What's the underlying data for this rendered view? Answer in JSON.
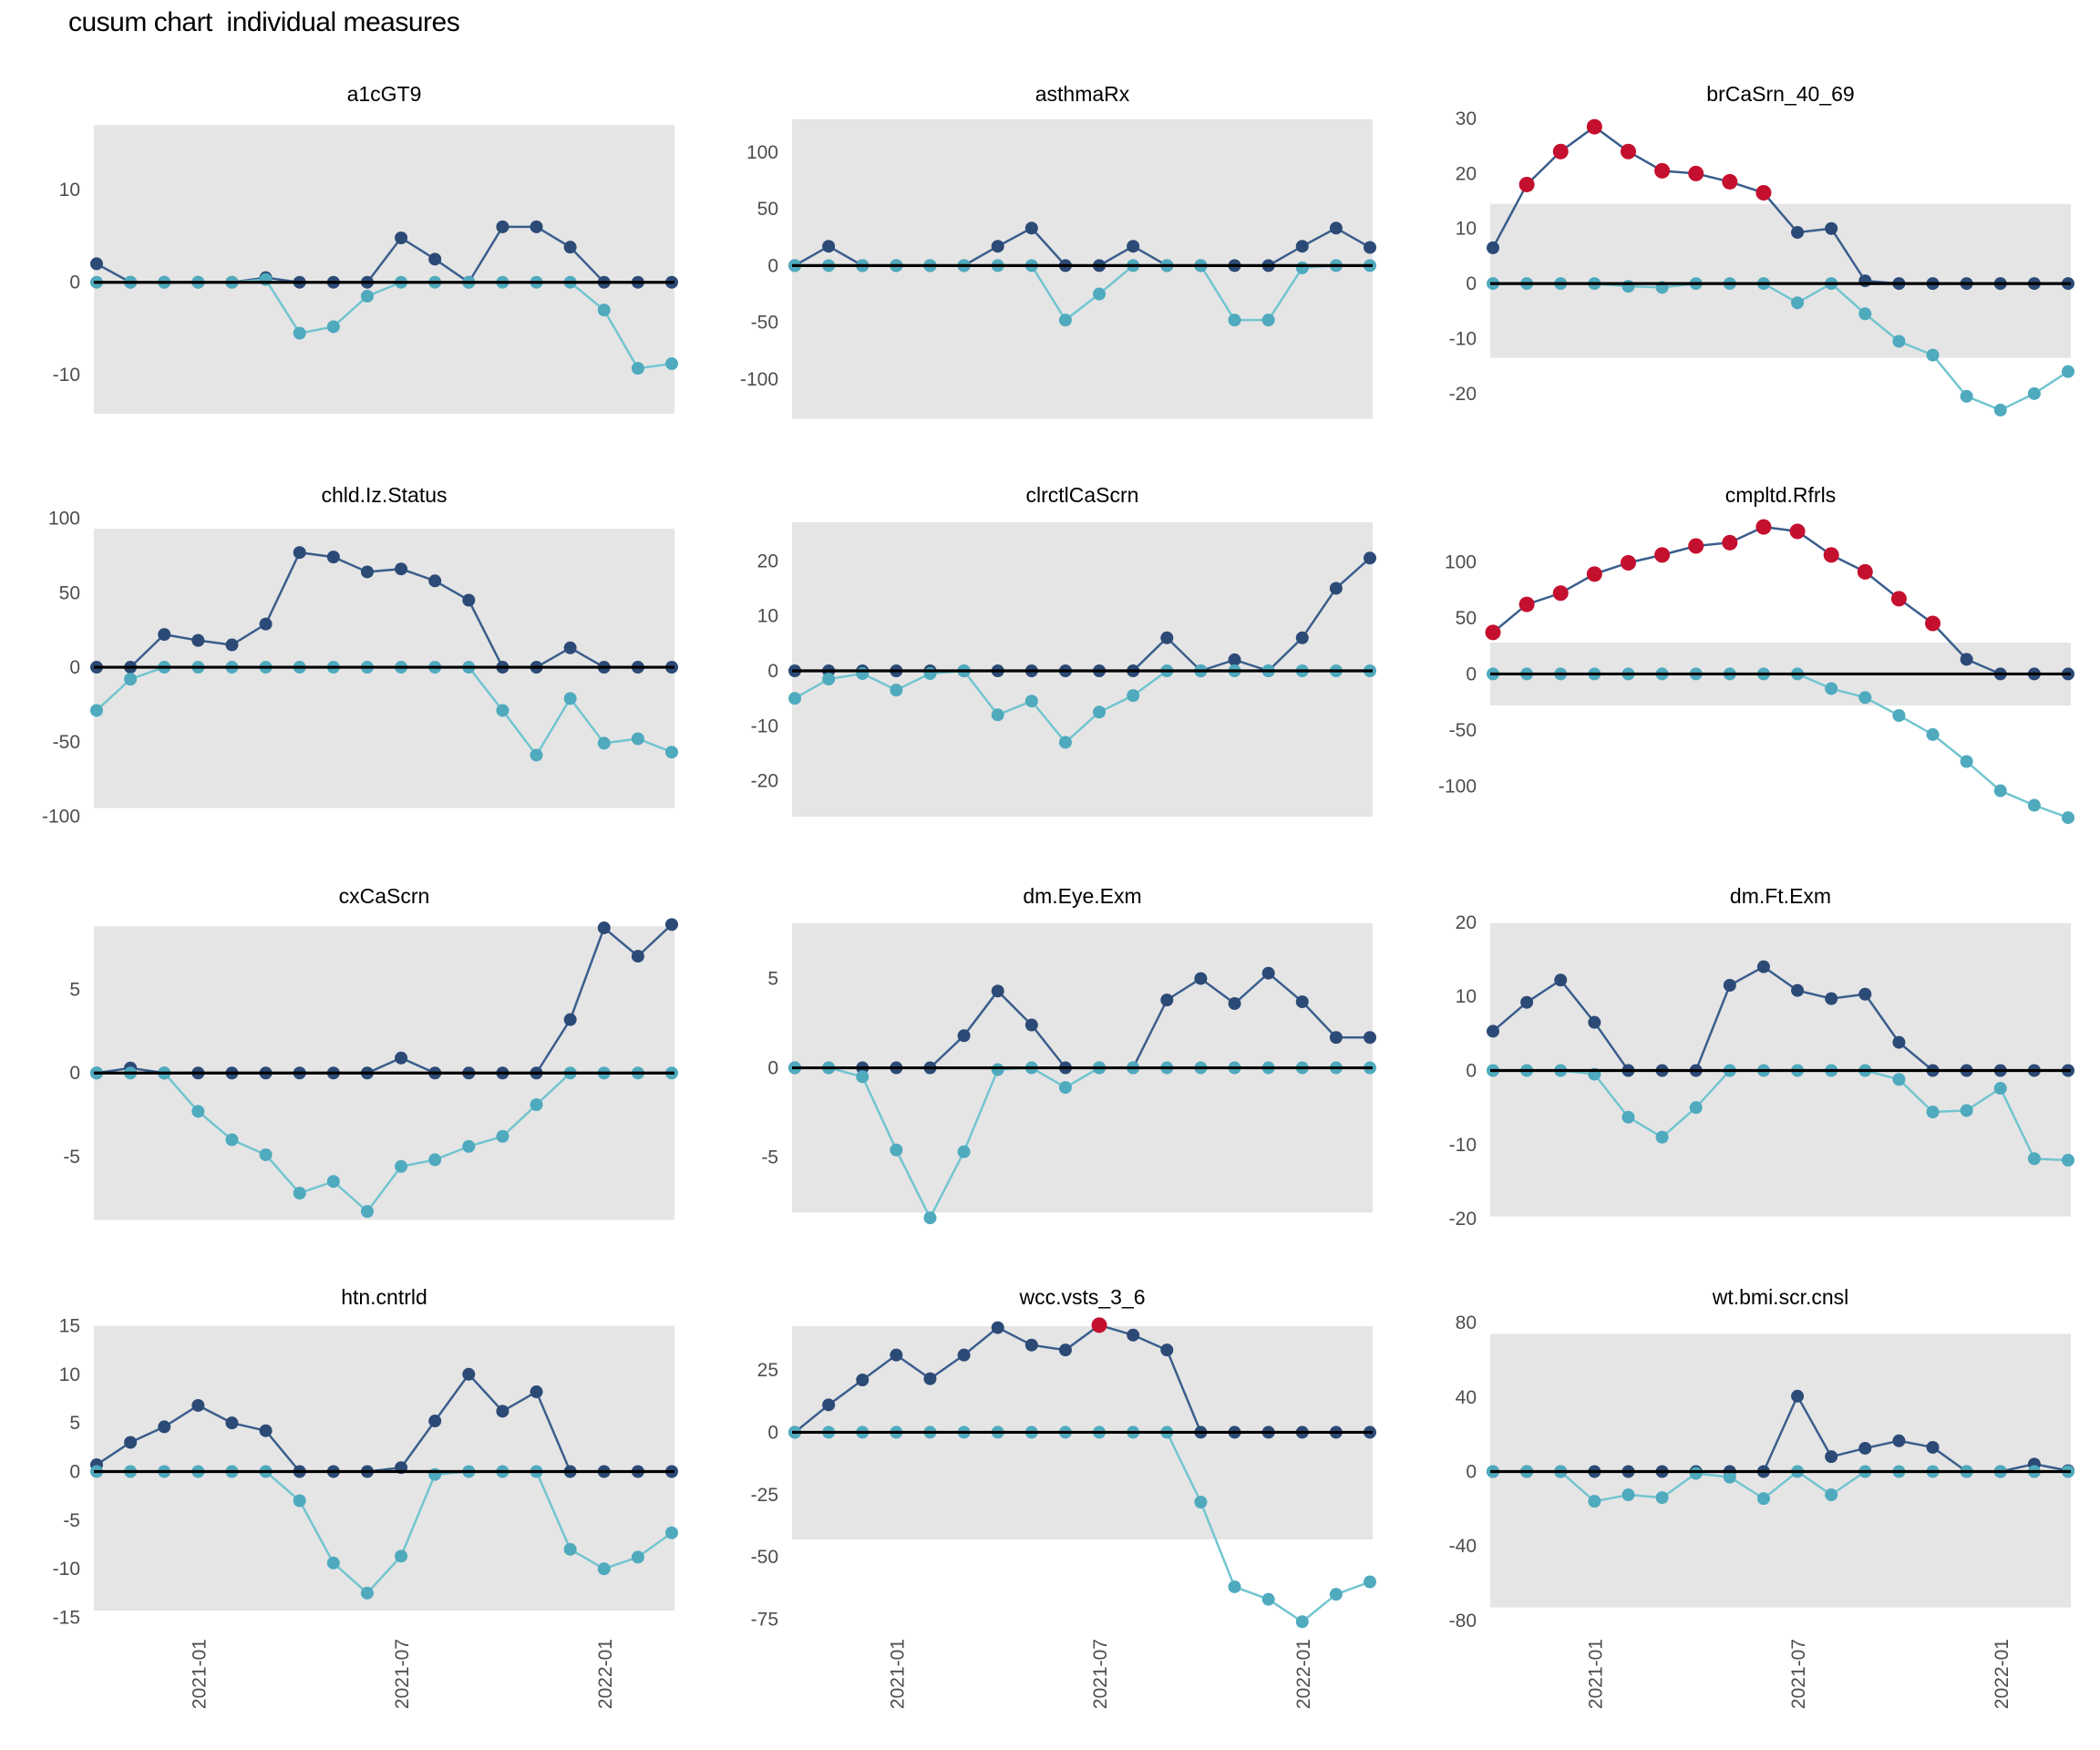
{
  "page_title": "cusum chart  individual measures",
  "colors": {
    "background": "#ffffff",
    "band_fill": "#e5e5e5",
    "zero_line": "#000000",
    "upper_line": "#3a5e8c",
    "upper_point": "#2c4a76",
    "lower_line": "#72c5d0",
    "lower_point": "#4faabe",
    "signal_point": "#c40f2e",
    "tick_text": "#4d4d4d",
    "title_text": "#000000"
  },
  "chart_data": {
    "type": "line",
    "title": "cusum chart  individual measures",
    "subtitle": "",
    "legend_position": "none",
    "grid": "off",
    "facet_grid": {
      "rows": 4,
      "cols": 3
    },
    "x_axis": {
      "tick_labels": [
        "2021-01",
        "2021-07",
        "2022-01"
      ],
      "tick_point_indices": [
        3,
        9,
        15
      ],
      "n_points": 18,
      "label_rotation_deg": -90
    },
    "series_names": [
      "cusum-upper",
      "cusum-lower"
    ],
    "panels": [
      {
        "name": "a1cGT9",
        "ylim": [
          -15,
          18
        ],
        "yticks": [
          10,
          0,
          -10
        ],
        "band": [
          -14.2,
          17
        ],
        "upper": [
          2,
          0,
          0,
          0,
          0,
          0.5,
          0,
          0,
          0,
          4.8,
          2.5,
          0,
          6,
          6,
          3.8,
          0,
          0,
          0
        ],
        "lower": [
          0,
          0,
          0,
          0,
          0,
          0.3,
          -5.5,
          -4.8,
          -1.5,
          0,
          0,
          0,
          0,
          0,
          0,
          -3,
          -9.3,
          -8.8
        ],
        "signal_indices": []
      },
      {
        "name": "asthmaRx",
        "ylim": [
          -137,
          132
        ],
        "yticks": [
          100,
          50,
          0,
          -50,
          -100
        ],
        "band": [
          -135,
          129
        ],
        "upper": [
          0,
          17,
          0,
          0,
          0,
          0,
          17,
          33,
          0,
          0,
          17,
          0,
          0,
          0,
          0,
          17,
          33,
          16
        ],
        "lower": [
          0,
          0,
          0,
          0,
          0,
          0,
          0,
          0,
          -48,
          -25,
          0,
          0,
          0,
          -48,
          -48,
          -2,
          0,
          0
        ],
        "signal_indices": []
      },
      {
        "name": "brCaSrn_40_69",
        "ylim": [
          -25,
          30.5
        ],
        "yticks": [
          30,
          20,
          10,
          0,
          -10,
          -20
        ],
        "band": [
          -13.5,
          14.5
        ],
        "upper": [
          6.5,
          18,
          24,
          28.5,
          24,
          20.5,
          20,
          18.5,
          16.5,
          9.3,
          10,
          0.5,
          0,
          0,
          0,
          0,
          0,
          0
        ],
        "lower": [
          0,
          0,
          0,
          0,
          -0.5,
          -0.7,
          0,
          0,
          0,
          -3.5,
          0,
          -5.5,
          -10.5,
          -13,
          -20.5,
          -23,
          -20,
          -16
        ],
        "signal_indices": [
          1,
          2,
          3,
          4,
          5,
          6,
          7,
          8
        ]
      },
      {
        "name": "chld.Iz.Status",
        "ylim": [
          -104,
          101
        ],
        "yticks": [
          100,
          50,
          0,
          -50,
          -100
        ],
        "band": [
          -94.5,
          93
        ],
        "upper": [
          0,
          0,
          22,
          18,
          15,
          29,
          77,
          74,
          64,
          66,
          58,
          45,
          0,
          0,
          13,
          0,
          0,
          0
        ],
        "lower": [
          -29,
          -8,
          0,
          0,
          0,
          0,
          0,
          0,
          0,
          0,
          0,
          0,
          -29,
          -59,
          -21,
          -51,
          -48,
          -57
        ],
        "signal_indices": []
      },
      {
        "name": "clrctlCaScrn",
        "ylim": [
          -27.5,
          28
        ],
        "yticks": [
          20,
          10,
          0,
          -10,
          -20
        ],
        "band": [
          -26.5,
          27
        ],
        "upper": [
          0,
          0,
          0,
          0,
          0,
          0,
          0,
          0,
          0,
          0,
          0,
          6,
          0,
          2,
          0,
          6,
          15,
          20.5
        ],
        "lower": [
          -5,
          -1.5,
          -0.5,
          -3.5,
          -0.5,
          0,
          -8,
          -5.5,
          -13,
          -7.5,
          -4.5,
          0,
          0,
          0,
          0,
          0,
          0,
          0
        ],
        "signal_indices": []
      },
      {
        "name": "cmpltd.Rfrls",
        "ylim": [
          -132,
          140
        ],
        "yticks": [
          100,
          50,
          0,
          -50,
          -100
        ],
        "band": [
          -28,
          28
        ],
        "upper": [
          37,
          62,
          72,
          89,
          99,
          106,
          114,
          117,
          131,
          127,
          106,
          91,
          67,
          45,
          13,
          0,
          0,
          0
        ],
        "lower": [
          0,
          0,
          0,
          0,
          0,
          0,
          0,
          0,
          0,
          0,
          -13,
          -21,
          -37,
          -54,
          -78,
          -104,
          -117,
          -128
        ],
        "signal_indices": [
          0,
          1,
          2,
          3,
          4,
          5,
          6,
          7,
          8,
          9,
          10,
          11,
          12,
          13
        ]
      },
      {
        "name": "cxCaScrn",
        "ylim": [
          -9,
          9.3
        ],
        "yticks": [
          5,
          0,
          -5
        ],
        "band": [
          -8.8,
          8.8
        ],
        "upper": [
          0,
          0.3,
          0,
          0,
          0,
          0,
          0,
          0,
          0,
          0.9,
          0,
          0,
          0,
          0,
          3.2,
          8.7,
          7,
          8.9
        ],
        "lower": [
          0,
          0,
          0,
          -2.3,
          -4,
          -4.9,
          -7.2,
          -6.5,
          -8.3,
          -5.6,
          -5.2,
          -4.4,
          -3.8,
          -1.9,
          0,
          0,
          0,
          0
        ],
        "signal_indices": []
      },
      {
        "name": "dm.Eye.Exm",
        "ylim": [
          -8.7,
          8.4
        ],
        "yticks": [
          5,
          0,
          -5
        ],
        "band": [
          -8.1,
          8.1
        ],
        "upper": [
          0,
          0,
          0,
          0,
          0,
          1.8,
          4.3,
          2.4,
          0,
          0,
          0,
          3.8,
          5,
          3.6,
          5.3,
          3.7,
          1.7,
          1.7
        ],
        "lower": [
          0,
          0,
          -0.5,
          -4.6,
          -8.4,
          -4.7,
          -0.1,
          0,
          -1.1,
          0,
          0,
          0,
          0,
          0,
          0,
          0,
          0,
          0
        ],
        "signal_indices": []
      },
      {
        "name": "dm.Ft.Exm",
        "ylim": [
          -20.6,
          20.6
        ],
        "yticks": [
          20,
          10,
          0,
          -10,
          -20
        ],
        "band": [
          -19.7,
          19.9
        ],
        "upper": [
          5.3,
          9.2,
          12.2,
          6.5,
          0,
          0,
          0,
          11.5,
          14,
          10.8,
          9.7,
          10.3,
          3.8,
          0,
          0,
          0,
          0,
          0
        ],
        "lower": [
          0,
          0,
          0,
          -0.5,
          -6.3,
          -9,
          -5,
          0,
          0,
          0,
          0,
          0,
          -1.2,
          -5.6,
          -5.4,
          -2.4,
          -11.9,
          -12.1
        ],
        "signal_indices": []
      },
      {
        "name": "htn.cntrld",
        "ylim": [
          -15.7,
          15.7
        ],
        "yticks": [
          15,
          10,
          5,
          0,
          -5,
          -10,
          -15
        ],
        "band": [
          -14.3,
          15
        ],
        "upper": [
          0.7,
          3,
          4.6,
          6.8,
          5,
          4.2,
          0,
          0,
          0,
          0.4,
          5.2,
          10,
          6.2,
          8.2,
          0,
          0,
          0,
          0
        ],
        "lower": [
          0,
          0,
          0,
          0,
          0,
          0,
          -3,
          -9.4,
          -12.5,
          -8.7,
          -0.3,
          0,
          0,
          0,
          -8,
          -10,
          -8.8,
          -6.3
        ],
        "signal_indices": []
      },
      {
        "name": "wcc.vsts_3_6",
        "ylim": [
          -77,
          45.5
        ],
        "yticks": [
          25,
          0,
          -25,
          -50,
          -75
        ],
        "band": [
          -43,
          42.6
        ],
        "upper": [
          0,
          11,
          21,
          31,
          21.5,
          31,
          42,
          35,
          33,
          43,
          39,
          33,
          0,
          0,
          0,
          0,
          0,
          0
        ],
        "lower": [
          0,
          0,
          0,
          0,
          0,
          0,
          0,
          0,
          0,
          0,
          0,
          0,
          -28,
          -62,
          -67,
          -76,
          -65,
          -60
        ],
        "signal_indices": [
          9
        ]
      },
      {
        "name": "wt.bmi.scr.cnsl",
        "ylim": [
          -82,
          82
        ],
        "yticks": [
          80,
          40,
          0,
          -40,
          -80
        ],
        "band": [
          -73,
          74
        ],
        "upper": [
          0,
          0,
          0,
          0,
          0,
          0,
          0,
          0,
          0,
          40.5,
          8,
          12.5,
          16.5,
          13,
          0,
          0,
          4,
          0.5
        ],
        "lower": [
          0,
          0,
          0,
          -16,
          -12.5,
          -14,
          -1,
          -3,
          -14.5,
          0,
          -12.5,
          0,
          0,
          0,
          0,
          0,
          0,
          0
        ],
        "signal_indices": []
      }
    ]
  }
}
